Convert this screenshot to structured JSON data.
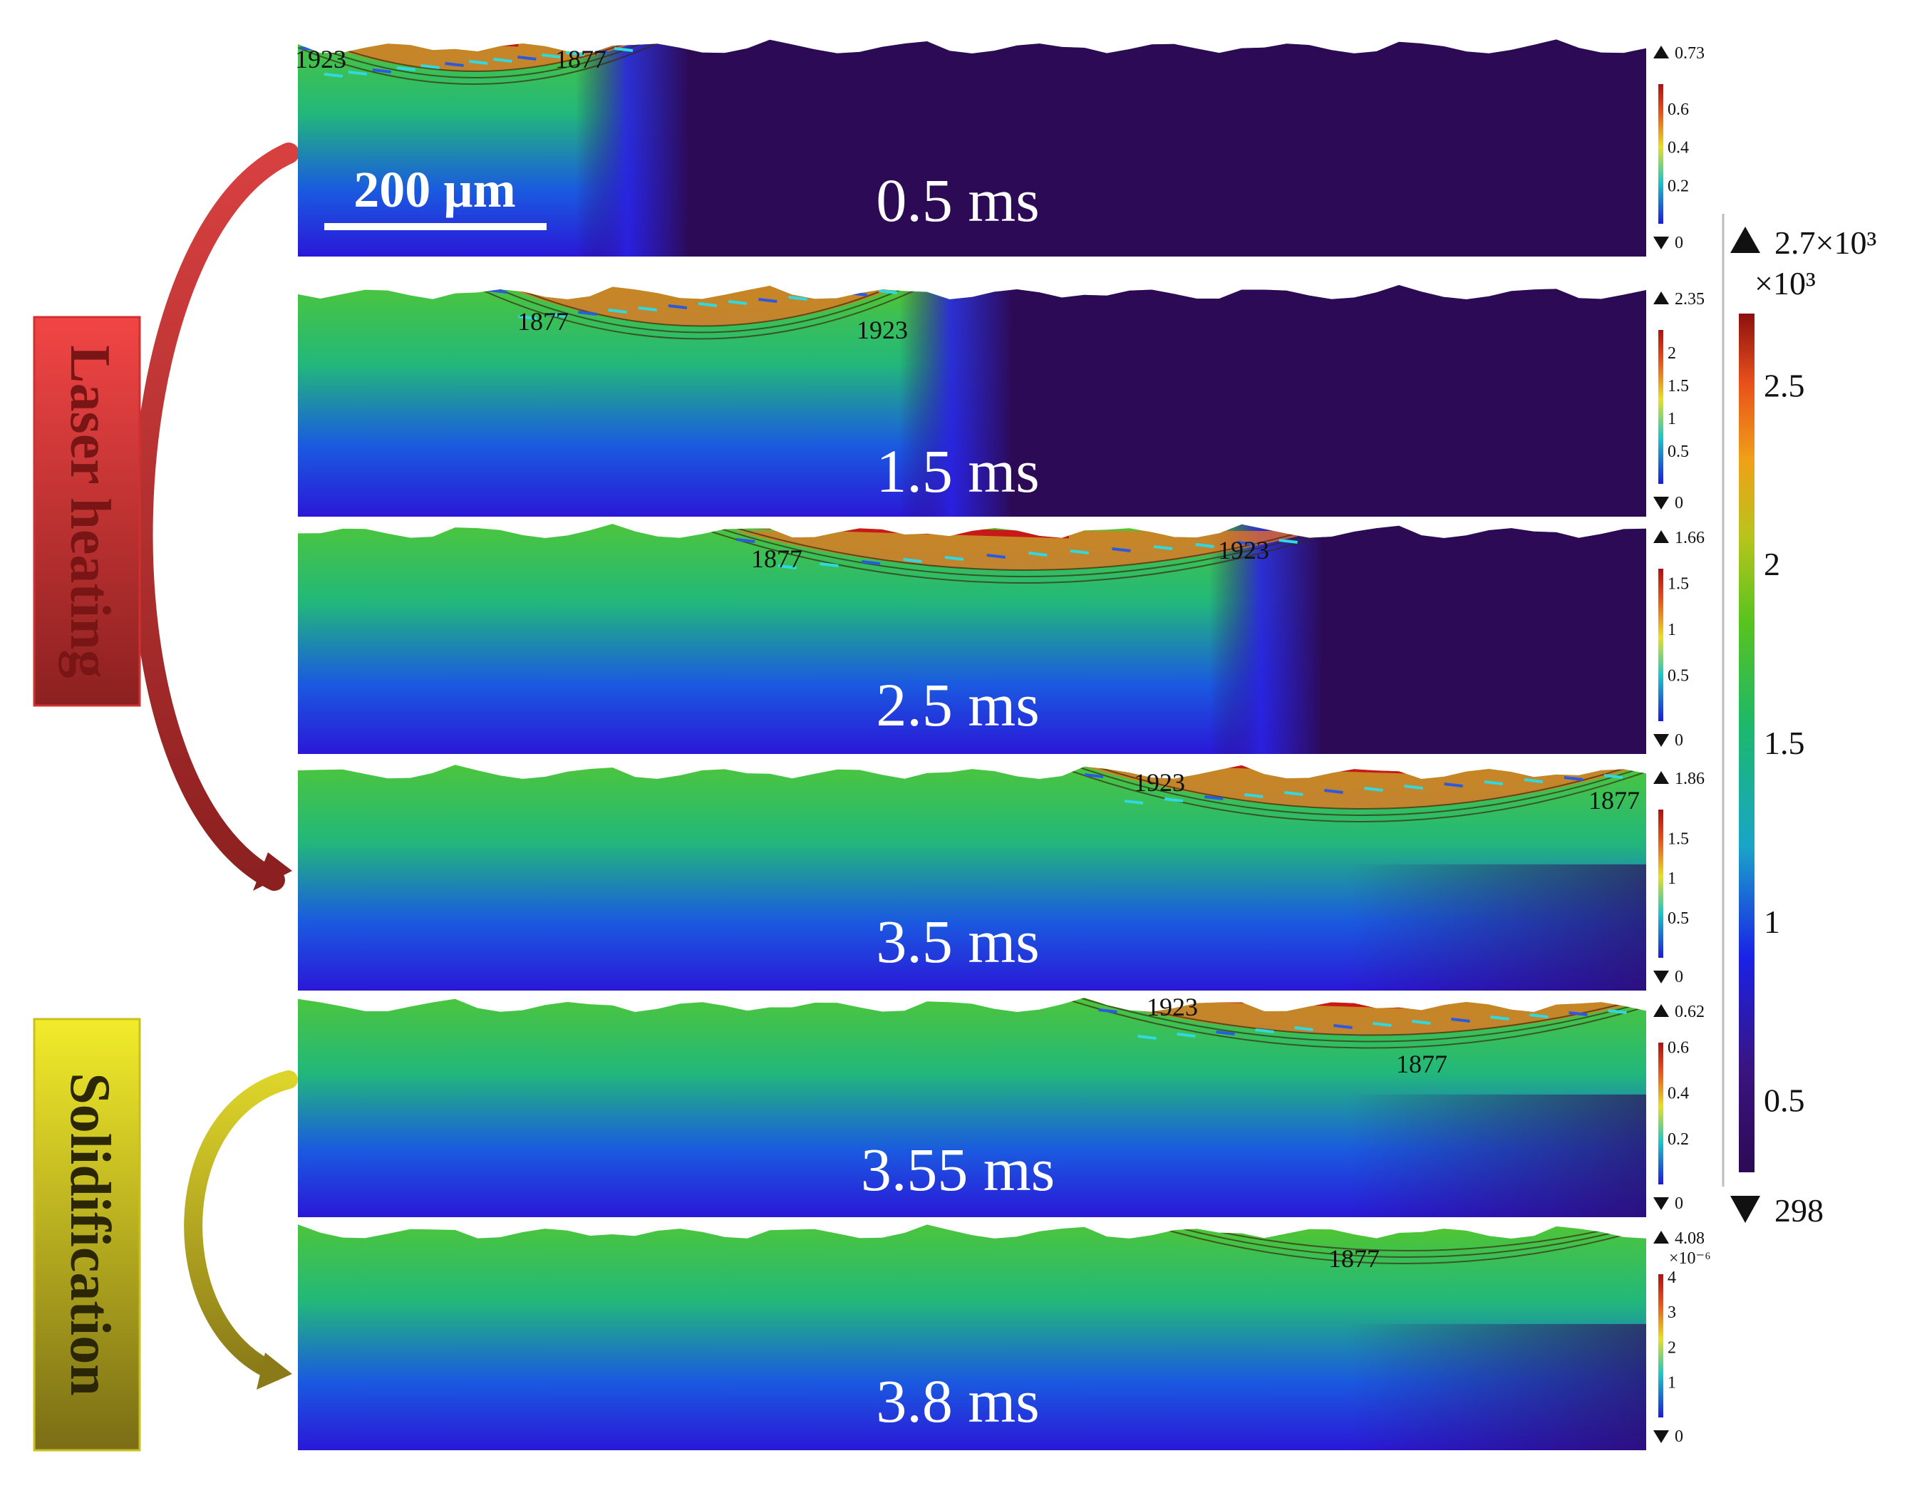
{
  "scale_bar": {
    "label": "200 µm"
  },
  "phases": [
    {
      "label": "Laser heating",
      "color_top": "#f24545",
      "color_bottom": "#8c2020"
    },
    {
      "label": "Solidification",
      "color_top": "#f2ec2a",
      "color_bottom": "#7a6d15"
    }
  ],
  "colorbar": {
    "max_label": "2.7×10³",
    "unit_label": "×10³",
    "min_label": "298",
    "ticks": [
      "2.5",
      "2",
      "1.5",
      "1",
      "0.5"
    ]
  },
  "panels": [
    {
      "time": "0.5 ms",
      "isotherms": [
        "1923",
        "1877"
      ],
      "vel_max": "0.73",
      "vel_min": "0",
      "vel_exp": "",
      "vel_ticks": [
        "0.6",
        "0.4",
        "0.2"
      ]
    },
    {
      "time": "1.5 ms",
      "isotherms": [
        "1877",
        "1923"
      ],
      "vel_max": "2.35",
      "vel_min": "0",
      "vel_exp": "",
      "vel_ticks": [
        "2",
        "1.5",
        "1",
        "0.5"
      ]
    },
    {
      "time": "2.5 ms",
      "isotherms": [
        "1877",
        "1923"
      ],
      "vel_max": "1.66",
      "vel_min": "0",
      "vel_exp": "",
      "vel_ticks": [
        "1.5",
        "1",
        "0.5"
      ]
    },
    {
      "time": "3.5 ms",
      "isotherms": [
        "1923",
        "1877"
      ],
      "vel_max": "1.86",
      "vel_min": "0",
      "vel_exp": "",
      "vel_ticks": [
        "1.5",
        "1",
        "0.5"
      ]
    },
    {
      "time": "3.55 ms",
      "isotherms": [
        "1923",
        "1877"
      ],
      "vel_max": "0.62",
      "vel_min": "0",
      "vel_exp": "",
      "vel_ticks": [
        "0.6",
        "0.4",
        "0.2"
      ]
    },
    {
      "time": "3.8 ms",
      "isotherms": [
        "1877"
      ],
      "vel_max": "4.08",
      "vel_min": "0",
      "vel_exp": "×10⁻⁶",
      "vel_ticks": [
        "4",
        "3",
        "2",
        "1"
      ]
    }
  ]
}
